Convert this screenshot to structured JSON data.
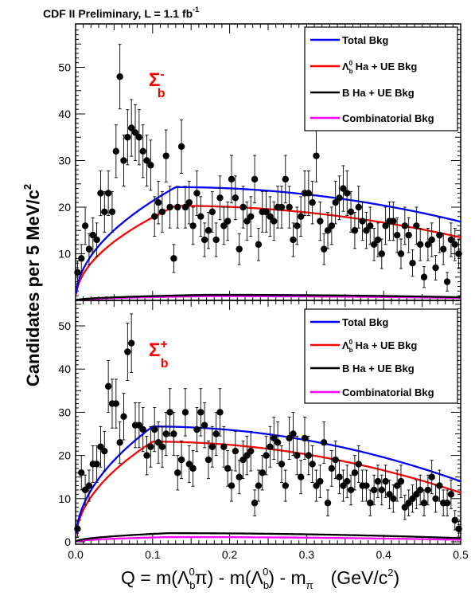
{
  "header": {
    "text": "CDF II Preliminary, L = 1.1 fb",
    "sup": "-1"
  },
  "ylabel": {
    "text": "Candidates per 5 MeV/c",
    "sup": "2"
  },
  "xlabel": {
    "q": "Q = m(Λ",
    "b1_sub": "b",
    "b1_sup": "0",
    "pi_part": "π) - m(Λ",
    "b2_sub": "b",
    "b2_sup": "0",
    "after": ") - m",
    "m_sub": "π",
    "units": "(GeV/c",
    "units_sup": "2",
    "units_close": ")"
  },
  "legend_entries": [
    {
      "key": "total",
      "label": "Total Bkg"
    },
    {
      "key": "lambda",
      "pre": "Λ",
      "sub": "b",
      "sup": "0",
      "label": " Ha + UE Bkg"
    },
    {
      "key": "bha",
      "label": "B Ha + UE Bkg"
    },
    {
      "key": "comb",
      "label": "Combinatorial Bkg"
    }
  ],
  "colors": {
    "total": "#0000ff",
    "lambda": "#ff0000",
    "bha": "#000000",
    "comb": "#ff00ff",
    "data": "#000000"
  },
  "chart_data": [
    {
      "type": "scatter",
      "panel": "top",
      "label": {
        "main": "Σ",
        "sub": "b",
        "sup": "-"
      },
      "xlim": [
        0.0,
        0.5
      ],
      "ylim": [
        0,
        58
      ],
      "yticks": [
        10,
        20,
        30,
        40,
        50
      ],
      "xticks": [],
      "data": [
        [
          0.0025,
          6
        ],
        [
          0.0075,
          9
        ],
        [
          0.0125,
          16
        ],
        [
          0.0175,
          11
        ],
        [
          0.0225,
          14
        ],
        [
          0.0275,
          13
        ],
        [
          0.0325,
          23
        ],
        [
          0.0375,
          19
        ],
        [
          0.0425,
          23
        ],
        [
          0.0475,
          19
        ],
        [
          0.0525,
          32
        ],
        [
          0.0575,
          48
        ],
        [
          0.0625,
          30
        ],
        [
          0.0675,
          35
        ],
        [
          0.0725,
          37
        ],
        [
          0.0775,
          36
        ],
        [
          0.0825,
          35
        ],
        [
          0.0875,
          32
        ],
        [
          0.0925,
          30
        ],
        [
          0.0975,
          29
        ],
        [
          0.1025,
          18
        ],
        [
          0.1075,
          21
        ],
        [
          0.1125,
          19
        ],
        [
          0.1175,
          31
        ],
        [
          0.1225,
          20
        ],
        [
          0.1275,
          9
        ],
        [
          0.1325,
          20
        ],
        [
          0.1375,
          33
        ],
        [
          0.1425,
          20
        ],
        [
          0.1475,
          21
        ],
        [
          0.1525,
          16
        ],
        [
          0.1575,
          23
        ],
        [
          0.1625,
          18
        ],
        [
          0.1675,
          13
        ],
        [
          0.1725,
          15
        ],
        [
          0.1775,
          19
        ],
        [
          0.1825,
          13
        ],
        [
          0.1875,
          22
        ],
        [
          0.1925,
          16
        ],
        [
          0.1975,
          17
        ],
        [
          0.2025,
          26
        ],
        [
          0.2075,
          22
        ],
        [
          0.2125,
          11
        ],
        [
          0.2175,
          20
        ],
        [
          0.2225,
          17
        ],
        [
          0.2275,
          18
        ],
        [
          0.2325,
          26
        ],
        [
          0.2375,
          12
        ],
        [
          0.2425,
          19
        ],
        [
          0.2475,
          19
        ],
        [
          0.2525,
          18
        ],
        [
          0.2575,
          17
        ],
        [
          0.2625,
          20
        ],
        [
          0.2675,
          20
        ],
        [
          0.2725,
          26
        ],
        [
          0.2775,
          20
        ],
        [
          0.2825,
          13
        ],
        [
          0.2875,
          16
        ],
        [
          0.2925,
          18
        ],
        [
          0.2975,
          23
        ],
        [
          0.3025,
          23
        ],
        [
          0.3075,
          21
        ],
        [
          0.3125,
          31
        ],
        [
          0.3175,
          17
        ],
        [
          0.3225,
          11
        ],
        [
          0.3275,
          15
        ],
        [
          0.3325,
          16
        ],
        [
          0.3375,
          21
        ],
        [
          0.3425,
          22
        ],
        [
          0.3475,
          24
        ],
        [
          0.3525,
          23
        ],
        [
          0.3575,
          19
        ],
        [
          0.3625,
          15
        ],
        [
          0.3675,
          20
        ],
        [
          0.3725,
          17
        ],
        [
          0.3775,
          15
        ],
        [
          0.3825,
          16
        ],
        [
          0.3875,
          12
        ],
        [
          0.3925,
          13
        ],
        [
          0.3975,
          10
        ],
        [
          0.4025,
          16
        ],
        [
          0.4075,
          17
        ],
        [
          0.4125,
          17
        ],
        [
          0.4175,
          14
        ],
        [
          0.4225,
          10
        ],
        [
          0.4275,
          16
        ],
        [
          0.4325,
          14
        ],
        [
          0.4375,
          8
        ],
        [
          0.4425,
          16
        ],
        [
          0.4475,
          12
        ],
        [
          0.4525,
          5
        ],
        [
          0.4575,
          12
        ],
        [
          0.4625,
          13
        ],
        [
          0.4675,
          7
        ],
        [
          0.4725,
          14
        ],
        [
          0.4775,
          11
        ],
        [
          0.4825,
          4
        ],
        [
          0.4875,
          13
        ],
        [
          0.4925,
          12
        ],
        [
          0.4975,
          10
        ]
      ],
      "curves": {
        "total": {
          "A": 24.3,
          "x0": 0.13,
          "L": 0.67
        },
        "lambda": {
          "A": 20.3,
          "x0": 0.13,
          "L": 0.64
        },
        "bha": {
          "A": 1.2,
          "x0": 0.17,
          "L": 0.5
        },
        "comb": {
          "A": 0.9,
          "x0": 0.17,
          "L": 0.5
        }
      }
    },
    {
      "type": "scatter",
      "panel": "bottom",
      "label": {
        "main": "Σ",
        "sub": "b",
        "sup": "+"
      },
      "xlim": [
        0.0,
        0.5
      ],
      "ylim": [
        0,
        58
      ],
      "yticks": [
        0,
        10,
        20,
        30,
        40,
        50
      ],
      "xticks": [
        "0.0",
        "0.1",
        "0.2",
        "0.3",
        "0.4",
        "0.5"
      ],
      "data": [
        [
          0.0025,
          3
        ],
        [
          0.0075,
          16
        ],
        [
          0.0125,
          12
        ],
        [
          0.0175,
          13
        ],
        [
          0.0225,
          18
        ],
        [
          0.0275,
          18
        ],
        [
          0.0325,
          22
        ],
        [
          0.0375,
          21
        ],
        [
          0.0425,
          36
        ],
        [
          0.0475,
          32
        ],
        [
          0.0525,
          32
        ],
        [
          0.0575,
          23
        ],
        [
          0.0625,
          29
        ],
        [
          0.0675,
          44
        ],
        [
          0.0725,
          46
        ],
        [
          0.0775,
          27
        ],
        [
          0.0825,
          27
        ],
        [
          0.0875,
          26
        ],
        [
          0.0925,
          20
        ],
        [
          0.0975,
          22
        ],
        [
          0.1025,
          26
        ],
        [
          0.1075,
          23
        ],
        [
          0.1125,
          22
        ],
        [
          0.1175,
          25
        ],
        [
          0.1225,
          30
        ],
        [
          0.1275,
          25
        ],
        [
          0.1325,
          16
        ],
        [
          0.1375,
          19
        ],
        [
          0.1425,
          30
        ],
        [
          0.1475,
          18
        ],
        [
          0.1525,
          17
        ],
        [
          0.1575,
          26
        ],
        [
          0.1625,
          30
        ],
        [
          0.1675,
          27
        ],
        [
          0.1725,
          19
        ],
        [
          0.1775,
          22
        ],
        [
          0.1825,
          25
        ],
        [
          0.1875,
          30
        ],
        [
          0.1925,
          22
        ],
        [
          0.1975,
          17
        ],
        [
          0.2025,
          13
        ],
        [
          0.2075,
          21
        ],
        [
          0.2125,
          15
        ],
        [
          0.2175,
          19
        ],
        [
          0.2225,
          20
        ],
        [
          0.2275,
          21
        ],
        [
          0.2325,
          9
        ],
        [
          0.2375,
          13
        ],
        [
          0.2425,
          16
        ],
        [
          0.2475,
          20
        ],
        [
          0.2525,
          22
        ],
        [
          0.2575,
          24
        ],
        [
          0.2625,
          23
        ],
        [
          0.2675,
          18
        ],
        [
          0.2725,
          13
        ],
        [
          0.2775,
          24
        ],
        [
          0.2825,
          25
        ],
        [
          0.2875,
          20
        ],
        [
          0.2925,
          15
        ],
        [
          0.2975,
          24
        ],
        [
          0.3025,
          20
        ],
        [
          0.3075,
          18
        ],
        [
          0.3125,
          13
        ],
        [
          0.3175,
          14
        ],
        [
          0.3225,
          23
        ],
        [
          0.3275,
          9
        ],
        [
          0.3325,
          17
        ],
        [
          0.3375,
          19
        ],
        [
          0.3425,
          15
        ],
        [
          0.3475,
          13
        ],
        [
          0.3525,
          14
        ],
        [
          0.3575,
          12
        ],
        [
          0.3625,
          16
        ],
        [
          0.3675,
          18
        ],
        [
          0.3725,
          13
        ],
        [
          0.3775,
          13
        ],
        [
          0.3825,
          9
        ],
        [
          0.3875,
          12
        ],
        [
          0.3925,
          14
        ],
        [
          0.3975,
          12
        ],
        [
          0.4025,
          14
        ],
        [
          0.4075,
          11
        ],
        [
          0.4125,
          10
        ],
        [
          0.4175,
          13
        ],
        [
          0.4225,
          14
        ],
        [
          0.4275,
          8
        ],
        [
          0.4325,
          9
        ],
        [
          0.4375,
          10
        ],
        [
          0.4425,
          11
        ],
        [
          0.4475,
          12
        ],
        [
          0.4525,
          9
        ],
        [
          0.4575,
          12
        ],
        [
          0.4625,
          15
        ],
        [
          0.4675,
          10
        ],
        [
          0.4725,
          13
        ],
        [
          0.4775,
          9
        ],
        [
          0.4825,
          9
        ],
        [
          0.4875,
          11
        ],
        [
          0.4925,
          5
        ],
        [
          0.4975,
          3
        ]
      ],
      "curves": {
        "total": {
          "A": 26.7,
          "x0": 0.1,
          "L": 0.58
        },
        "lambda": {
          "A": 23.2,
          "x0": 0.1,
          "L": 0.56
        },
        "bha": {
          "A": 2.0,
          "x0": 0.12,
          "L": 0.5
        },
        "comb": {
          "A": 1.1,
          "x0": 0.12,
          "L": 0.5
        }
      }
    }
  ]
}
